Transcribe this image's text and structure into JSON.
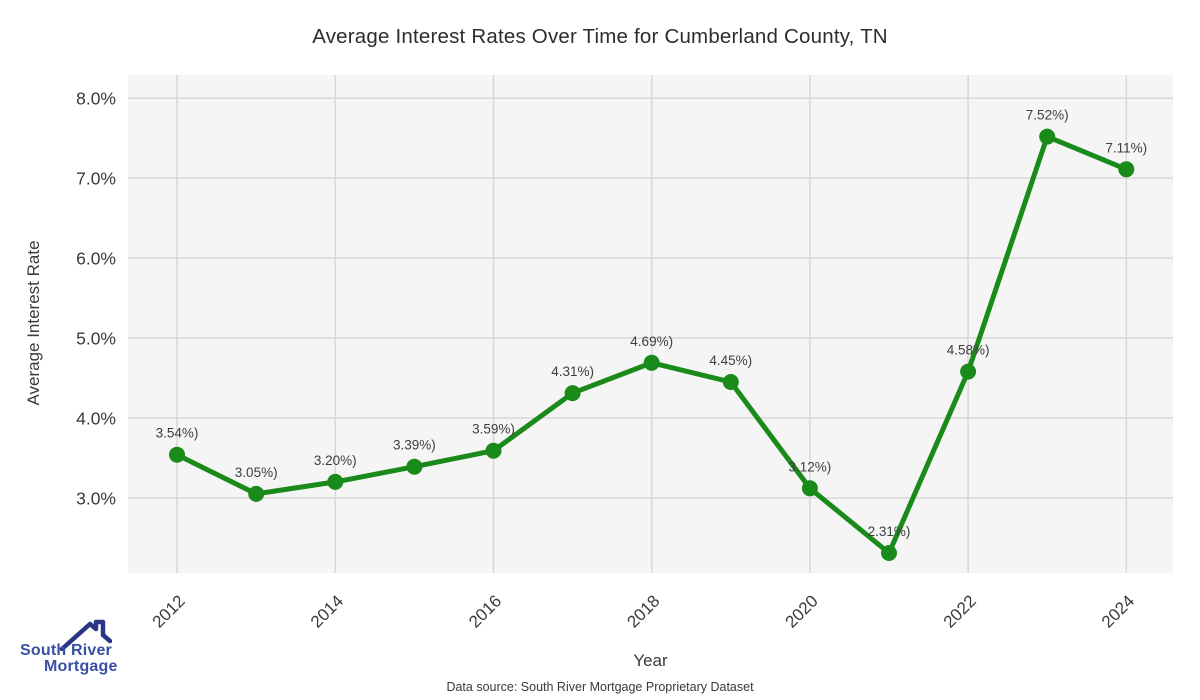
{
  "chart_data": {
    "type": "line",
    "title": "Average Interest Rates Over Time for Cumberland County, TN",
    "xlabel": "Year",
    "ylabel": "Average Interest Rate",
    "x": [
      2012,
      2013,
      2014,
      2015,
      2016,
      2017,
      2018,
      2019,
      2020,
      2021,
      2022,
      2023,
      2024
    ],
    "values": [
      3.54,
      3.05,
      3.2,
      3.39,
      3.59,
      4.31,
      4.69,
      4.45,
      3.12,
      2.31,
      4.58,
      7.52,
      7.11
    ],
    "point_labels": [
      "3.54%)",
      "3.05%)",
      "3.20%)",
      "3.39%)",
      "3.59%)",
      "4.31%)",
      "4.69%)",
      "4.45%)",
      "3.12%)",
      "2.31%)",
      "4.58%)",
      "7.52%)",
      "7.11%)"
    ],
    "xticks": [
      2012,
      2014,
      2016,
      2018,
      2020,
      2022,
      2024
    ],
    "ytick_values": [
      3.0,
      4.0,
      5.0,
      6.0,
      7.0,
      8.0
    ],
    "ytick_labels": [
      "3.0%",
      "4.0%",
      "5.0%",
      "6.0%",
      "7.0%",
      "8.0%"
    ],
    "xlim": [
      2011.38,
      2024.59
    ],
    "ylim": [
      2.06,
      8.29
    ],
    "grid": true,
    "legend_position": "none",
    "colors": {
      "line": "#1a8b1a",
      "marker": "#1a8b1a",
      "grid": "#d8d8d8",
      "plot_bg": "#f5f5f5",
      "point_label_text": "#3d3d3d",
      "tick_text": "#3a3a3a"
    }
  },
  "footer": {
    "source_note": "Data source: South River Mortgage Proprietary Dataset"
  },
  "logo": {
    "line1": "South River",
    "line2": "Mortgage",
    "text_color": "#3a50a5",
    "house_color": "#2b3585"
  }
}
